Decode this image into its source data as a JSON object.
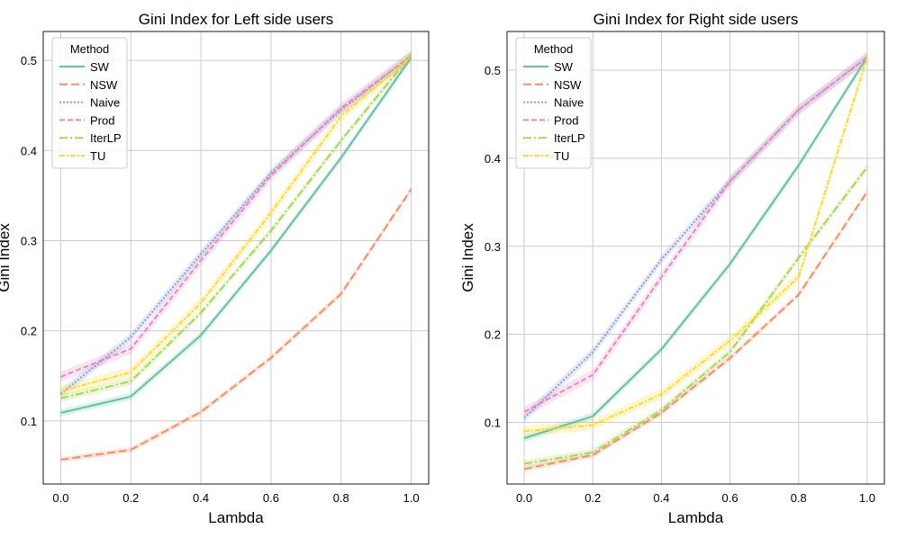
{
  "chart_data": [
    {
      "type": "line",
      "title": "Gini Index for Left side users",
      "xlabel": "Lambda",
      "ylabel": "Gini Index",
      "x": [
        0.0,
        0.2,
        0.4,
        0.6,
        0.8,
        1.0
      ],
      "xticks": [
        "0.0",
        "0.2",
        "0.4",
        "0.6",
        "0.8",
        "1.0"
      ],
      "yticks": [
        "0.1",
        "0.2",
        "0.3",
        "0.4",
        "0.5"
      ],
      "ytick_values": [
        0.1,
        0.2,
        0.3,
        0.4,
        0.5
      ],
      "xlim": [
        -0.05,
        1.05
      ],
      "ylim": [
        0.03,
        0.532
      ],
      "grid": true,
      "legend_title": "Method",
      "legend_loc": "upper left",
      "series": [
        {
          "name": "SW",
          "values": [
            0.109,
            0.127,
            0.195,
            0.289,
            0.392,
            0.503
          ]
        },
        {
          "name": "NSW",
          "values": [
            0.057,
            0.068,
            0.11,
            0.17,
            0.241,
            0.357
          ]
        },
        {
          "name": "Naive",
          "values": [
            0.13,
            0.193,
            0.285,
            0.375,
            0.445,
            0.505
          ]
        },
        {
          "name": "Prod",
          "values": [
            0.149,
            0.18,
            0.278,
            0.372,
            0.447,
            0.505
          ]
        },
        {
          "name": "IterLP",
          "values": [
            0.125,
            0.144,
            0.22,
            0.311,
            0.411,
            0.506
          ]
        },
        {
          "name": "TU",
          "values": [
            0.133,
            0.154,
            0.231,
            0.331,
            0.438,
            0.504
          ]
        }
      ]
    },
    {
      "type": "line",
      "title": "Gini Index for Right side users",
      "xlabel": "Lambda",
      "ylabel": "Gini Index",
      "x": [
        0.0,
        0.2,
        0.4,
        0.6,
        0.8,
        1.0
      ],
      "xticks": [
        "0.0",
        "0.2",
        "0.4",
        "0.6",
        "0.8",
        "1.0"
      ],
      "yticks": [
        "0.1",
        "0.2",
        "0.3",
        "0.4",
        "0.5"
      ],
      "ytick_values": [
        0.1,
        0.2,
        0.3,
        0.4,
        0.5
      ],
      "xlim": [
        -0.05,
        1.05
      ],
      "ylim": [
        0.03,
        0.544
      ],
      "grid": true,
      "legend_title": "Method",
      "legend_loc": "upper left",
      "series": [
        {
          "name": "SW",
          "values": [
            0.082,
            0.107,
            0.183,
            0.28,
            0.392,
            0.515
          ]
        },
        {
          "name": "NSW",
          "values": [
            0.047,
            0.063,
            0.111,
            0.173,
            0.245,
            0.362
          ]
        },
        {
          "name": "Naive",
          "values": [
            0.105,
            0.18,
            0.285,
            0.374,
            0.455,
            0.515
          ]
        },
        {
          "name": "Prod",
          "values": [
            0.112,
            0.154,
            0.265,
            0.374,
            0.455,
            0.515
          ]
        },
        {
          "name": "IterLP",
          "values": [
            0.053,
            0.066,
            0.114,
            0.18,
            0.287,
            0.39
          ]
        },
        {
          "name": "TU",
          "values": [
            0.09,
            0.097,
            0.132,
            0.193,
            0.265,
            0.515
          ]
        }
      ]
    }
  ],
  "styles": {
    "SW": {
      "color": "#66c2a5",
      "dash": ""
    },
    "NSW": {
      "color": "#fc8d62",
      "dash": "9,4"
    },
    "Naive": {
      "color": "#8da0cb",
      "dash": "2,2"
    },
    "Prod": {
      "color": "#e78ac3",
      "dash": "6,3"
    },
    "IterLP": {
      "color": "#a6d854",
      "dash": "9,3,2,3"
    },
    "TU": {
      "color": "#ffd92f",
      "dash": "6,2,2,2"
    }
  },
  "colors": {
    "grid": "#cccccc",
    "axes": "#1a1a1a",
    "legend_border": "#cccccc"
  }
}
